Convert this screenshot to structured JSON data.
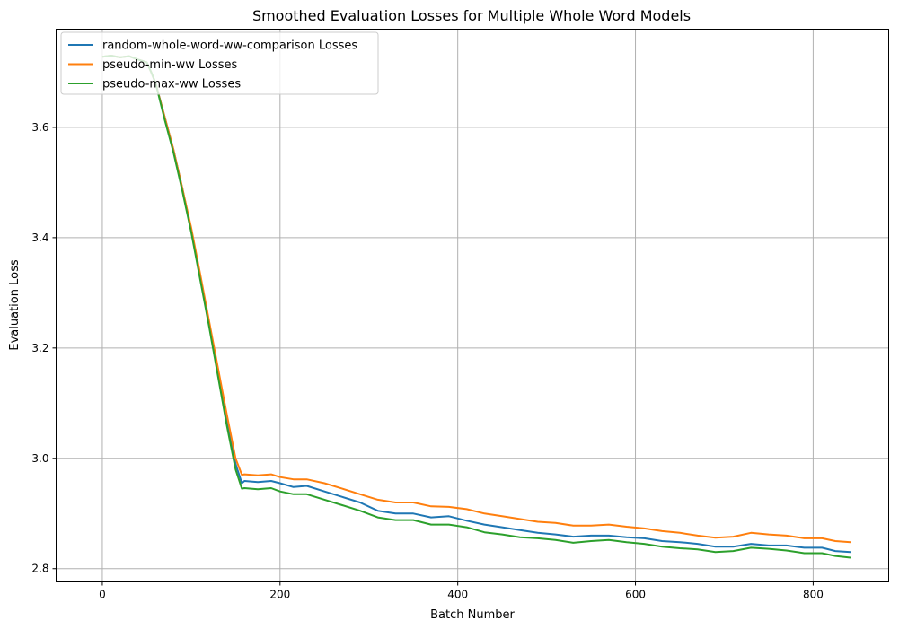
{
  "chart_data": {
    "type": "line",
    "title": "Smoothed Evaluation Losses for Multiple Whole Word Models",
    "xlabel": "Batch Number",
    "ylabel": "Evaluation Loss",
    "xlim": [
      -52,
      885
    ],
    "ylim": [
      2.776,
      3.778
    ],
    "xticks": [
      0,
      200,
      400,
      600,
      800
    ],
    "yticks": [
      2.8,
      3.0,
      3.2,
      3.4,
      3.6
    ],
    "grid": true,
    "legend_position": "top-left",
    "series": [
      {
        "name": "random-whole-word-ww-comparison Losses",
        "color": "#1f77b4",
        "points": [
          [
            0,
            3.728
          ],
          [
            10,
            3.73
          ],
          [
            20,
            3.727
          ],
          [
            30,
            3.729
          ],
          [
            40,
            3.723
          ],
          [
            50,
            3.718
          ],
          [
            55,
            3.7
          ],
          [
            60,
            3.68
          ],
          [
            70,
            3.62
          ],
          [
            80,
            3.56
          ],
          [
            90,
            3.49
          ],
          [
            100,
            3.415
          ],
          [
            110,
            3.33
          ],
          [
            120,
            3.245
          ],
          [
            130,
            3.16
          ],
          [
            140,
            3.07
          ],
          [
            150,
            2.99
          ],
          [
            157,
            2.955
          ],
          [
            160,
            2.959
          ],
          [
            175,
            2.957
          ],
          [
            190,
            2.959
          ],
          [
            200,
            2.955
          ],
          [
            215,
            2.948
          ],
          [
            230,
            2.95
          ],
          [
            250,
            2.94
          ],
          [
            270,
            2.93
          ],
          [
            290,
            2.92
          ],
          [
            310,
            2.905
          ],
          [
            330,
            2.9
          ],
          [
            350,
            2.9
          ],
          [
            370,
            2.893
          ],
          [
            390,
            2.895
          ],
          [
            410,
            2.887
          ],
          [
            430,
            2.88
          ],
          [
            450,
            2.875
          ],
          [
            470,
            2.87
          ],
          [
            490,
            2.865
          ],
          [
            510,
            2.862
          ],
          [
            530,
            2.858
          ],
          [
            550,
            2.86
          ],
          [
            570,
            2.86
          ],
          [
            590,
            2.857
          ],
          [
            610,
            2.855
          ],
          [
            630,
            2.85
          ],
          [
            650,
            2.848
          ],
          [
            670,
            2.845
          ],
          [
            690,
            2.84
          ],
          [
            710,
            2.84
          ],
          [
            730,
            2.845
          ],
          [
            750,
            2.842
          ],
          [
            770,
            2.842
          ],
          [
            790,
            2.838
          ],
          [
            810,
            2.838
          ],
          [
            825,
            2.832
          ],
          [
            842,
            2.83
          ]
        ]
      },
      {
        "name": "pseudo-min-ww Losses",
        "color": "#ff7f0e",
        "points": [
          [
            0,
            3.728
          ],
          [
            10,
            3.73
          ],
          [
            20,
            3.727
          ],
          [
            30,
            3.729
          ],
          [
            40,
            3.723
          ],
          [
            50,
            3.718
          ],
          [
            55,
            3.7
          ],
          [
            60,
            3.68
          ],
          [
            70,
            3.62
          ],
          [
            80,
            3.56
          ],
          [
            90,
            3.49
          ],
          [
            100,
            3.418
          ],
          [
            110,
            3.335
          ],
          [
            120,
            3.25
          ],
          [
            130,
            3.165
          ],
          [
            140,
            3.08
          ],
          [
            150,
            3.0
          ],
          [
            157,
            2.97
          ],
          [
            160,
            2.971
          ],
          [
            175,
            2.969
          ],
          [
            190,
            2.971
          ],
          [
            200,
            2.966
          ],
          [
            215,
            2.962
          ],
          [
            230,
            2.962
          ],
          [
            250,
            2.955
          ],
          [
            270,
            2.945
          ],
          [
            290,
            2.935
          ],
          [
            310,
            2.925
          ],
          [
            330,
            2.92
          ],
          [
            350,
            2.92
          ],
          [
            370,
            2.913
          ],
          [
            390,
            2.912
          ],
          [
            410,
            2.908
          ],
          [
            430,
            2.9
          ],
          [
            450,
            2.895
          ],
          [
            470,
            2.89
          ],
          [
            490,
            2.885
          ],
          [
            510,
            2.883
          ],
          [
            530,
            2.878
          ],
          [
            550,
            2.878
          ],
          [
            570,
            2.88
          ],
          [
            590,
            2.876
          ],
          [
            610,
            2.873
          ],
          [
            630,
            2.868
          ],
          [
            650,
            2.865
          ],
          [
            670,
            2.86
          ],
          [
            690,
            2.856
          ],
          [
            710,
            2.858
          ],
          [
            730,
            2.865
          ],
          [
            750,
            2.862
          ],
          [
            770,
            2.86
          ],
          [
            790,
            2.855
          ],
          [
            810,
            2.855
          ],
          [
            825,
            2.85
          ],
          [
            842,
            2.848
          ]
        ]
      },
      {
        "name": "pseudo-max-ww Losses",
        "color": "#2ca02c",
        "points": [
          [
            0,
            3.728
          ],
          [
            10,
            3.73
          ],
          [
            20,
            3.727
          ],
          [
            30,
            3.729
          ],
          [
            40,
            3.723
          ],
          [
            50,
            3.718
          ],
          [
            55,
            3.7
          ],
          [
            60,
            3.68
          ],
          [
            70,
            3.615
          ],
          [
            80,
            3.555
          ],
          [
            90,
            3.485
          ],
          [
            100,
            3.41
          ],
          [
            110,
            3.325
          ],
          [
            120,
            3.24
          ],
          [
            130,
            3.15
          ],
          [
            140,
            3.06
          ],
          [
            150,
            2.98
          ],
          [
            157,
            2.945
          ],
          [
            160,
            2.946
          ],
          [
            175,
            2.944
          ],
          [
            190,
            2.946
          ],
          [
            200,
            2.94
          ],
          [
            215,
            2.935
          ],
          [
            230,
            2.935
          ],
          [
            250,
            2.925
          ],
          [
            270,
            2.915
          ],
          [
            290,
            2.905
          ],
          [
            310,
            2.893
          ],
          [
            330,
            2.888
          ],
          [
            350,
            2.888
          ],
          [
            370,
            2.88
          ],
          [
            390,
            2.88
          ],
          [
            410,
            2.875
          ],
          [
            430,
            2.866
          ],
          [
            450,
            2.862
          ],
          [
            470,
            2.857
          ],
          [
            490,
            2.855
          ],
          [
            510,
            2.852
          ],
          [
            530,
            2.847
          ],
          [
            550,
            2.85
          ],
          [
            570,
            2.852
          ],
          [
            590,
            2.848
          ],
          [
            610,
            2.845
          ],
          [
            630,
            2.84
          ],
          [
            650,
            2.837
          ],
          [
            670,
            2.835
          ],
          [
            690,
            2.83
          ],
          [
            710,
            2.832
          ],
          [
            730,
            2.838
          ],
          [
            750,
            2.836
          ],
          [
            770,
            2.833
          ],
          [
            790,
            2.828
          ],
          [
            810,
            2.828
          ],
          [
            825,
            2.823
          ],
          [
            842,
            2.82
          ]
        ]
      }
    ]
  }
}
